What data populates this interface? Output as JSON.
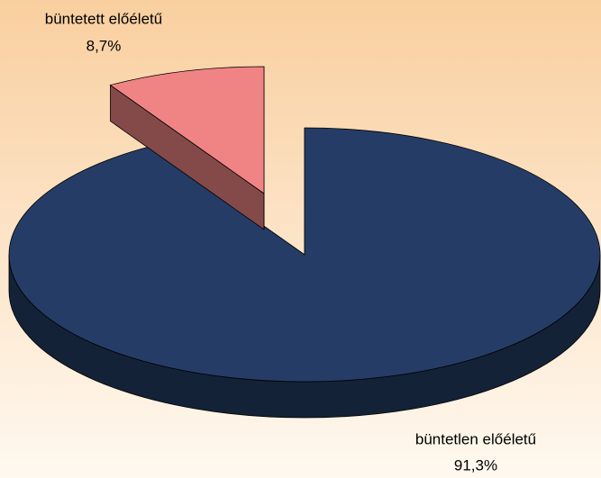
{
  "chart_data": {
    "type": "pie",
    "categories": [
      "büntetett előéletű",
      "büntetlen előéletű"
    ],
    "values": [
      8.7,
      91.3
    ],
    "value_labels": [
      "8,7%",
      "91,3%"
    ],
    "colors": [
      "#f08484",
      "#253d66"
    ]
  }
}
